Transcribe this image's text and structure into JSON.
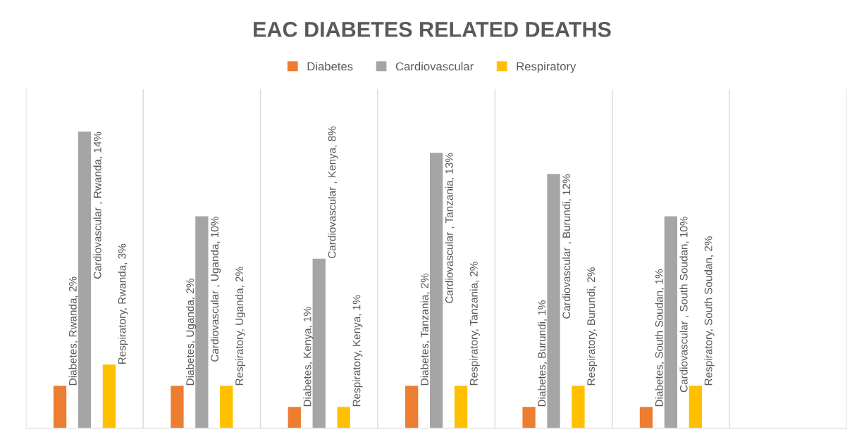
{
  "chart_data": {
    "type": "bar",
    "title": "EAC DIABETES RELATED DEATHS",
    "categories": [
      null,
      null,
      null,
      null,
      null,
      null
    ],
    "series": [
      {
        "name": "Diabetes",
        "color": "#ed7d31",
        "values": [
          2,
          2,
          1,
          2,
          1,
          1
        ],
        "value_labels": [
          "Diabetes, Rwanda, 2%",
          "Diabetes, Uganda, 2%",
          "Diabetes, Kenya, 1%",
          "Diabetes, Tanzania, 2%",
          "Diabetes, Burundi, 1%",
          "Diabetes, South Soudan, 1%"
        ]
      },
      {
        "name": "Cardiovascular",
        "color": "#a5a5a5",
        "values": [
          14,
          10,
          8,
          13,
          12,
          10
        ],
        "value_labels": [
          "Cardiovascular , Rwanda, 14%",
          "Cardiovascular , Uganda, 10%",
          "Cardiovascular , Kenya, 8%",
          "Cardiovascular , Tanzania, 13%",
          "Cardiovascular , Burundi, 12%",
          "Cardiovascular , South Soudan, 10%"
        ]
      },
      {
        "name": "Respiratory",
        "color": "#ffc000",
        "values": [
          3,
          2,
          1,
          2,
          2,
          2
        ],
        "value_labels": [
          "Respiratory, Rwanda, 3%",
          "Respiratory, Uganda, 2%",
          "Respiratory, Kenya, 1%",
          "Respiratory, Tanzania, 2%",
          "Respiratory, Burundi, 2%",
          "Respiratory, South Soudan, 2%"
        ]
      }
    ],
    "ylim": [
      0,
      16
    ],
    "tick_labels": false,
    "grid": "x",
    "legend": "top"
  }
}
